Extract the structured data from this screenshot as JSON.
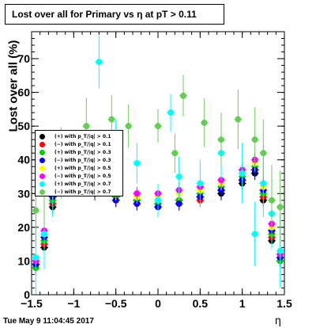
{
  "chart_data": {
    "type": "scatter",
    "title": "Lost over all for Primary vs   η at pT > 0.11",
    "xlabel": "η",
    "ylabel": "Lost over all (%)",
    "xlim": [
      -1.5,
      1.5
    ],
    "ylim": [
      0,
      78
    ],
    "x_ticks": [
      "−1.5",
      "−1",
      "−0.5",
      "0",
      "0.5",
      "1",
      "1.5"
    ],
    "y_ticks": [
      "0",
      "10",
      "20",
      "30",
      "40",
      "50",
      "60",
      "70"
    ],
    "grid": false,
    "legend_position": "left",
    "series": [
      {
        "name": "(+) with p_T/|q| > 0.1",
        "color": "#000000",
        "values": [
          [
            -1.45,
            8
          ],
          [
            -1.35,
            14
          ],
          [
            -1.25,
            26
          ],
          [
            -1.15,
            32
          ],
          [
            -1,
            32
          ],
          [
            -0.75,
            31
          ],
          [
            -0.5,
            29
          ],
          [
            -0.25,
            28
          ],
          [
            0,
            27
          ],
          [
            0.25,
            28
          ],
          [
            0.5,
            29
          ],
          [
            0.75,
            30
          ],
          [
            1,
            33
          ],
          [
            1.15,
            36
          ],
          [
            1.25,
            28
          ],
          [
            1.35,
            16
          ],
          [
            1.45,
            10
          ]
        ]
      },
      {
        "name": "(−) with p_T/|q| > 0.1",
        "color": "#ff0000",
        "values": [
          [
            -1.45,
            9
          ],
          [
            -1.35,
            15
          ],
          [
            -1.25,
            27
          ],
          [
            -1.15,
            33
          ],
          [
            -1,
            33
          ],
          [
            -0.75,
            30
          ],
          [
            -0.5,
            28
          ],
          [
            -0.25,
            27
          ],
          [
            0,
            26
          ],
          [
            0.25,
            27
          ],
          [
            0.5,
            28
          ],
          [
            0.75,
            31
          ],
          [
            1,
            34
          ],
          [
            1.15,
            37
          ],
          [
            1.25,
            29
          ],
          [
            1.35,
            17
          ],
          [
            1.45,
            11
          ]
        ]
      },
      {
        "name": "(+) with p_T/|q| > 0.3",
        "color": "#00cc00",
        "values": [
          [
            -1.45,
            8
          ],
          [
            -1.35,
            16
          ],
          [
            -1.25,
            28
          ],
          [
            -1.15,
            34
          ],
          [
            -1,
            34
          ],
          [
            -0.75,
            31
          ],
          [
            -0.5,
            29
          ],
          [
            -0.25,
            28
          ],
          [
            0,
            27
          ],
          [
            0.25,
            28
          ],
          [
            0.5,
            30
          ],
          [
            0.75,
            32
          ],
          [
            1,
            35
          ],
          [
            1.15,
            38
          ],
          [
            1.25,
            30
          ],
          [
            1.35,
            18
          ],
          [
            1.45,
            10
          ]
        ]
      },
      {
        "name": "(−) with p_T/|q| > 0.3",
        "color": "#0000ff",
        "values": [
          [
            -1.45,
            9
          ],
          [
            -1.35,
            17
          ],
          [
            -1.25,
            29
          ],
          [
            -1.15,
            35
          ],
          [
            -1,
            33
          ],
          [
            -0.75,
            30
          ],
          [
            -0.5,
            28
          ],
          [
            -0.25,
            27
          ],
          [
            0,
            26
          ],
          [
            0.25,
            27
          ],
          [
            0.5,
            29
          ],
          [
            0.75,
            31
          ],
          [
            1,
            34
          ],
          [
            1.15,
            37
          ],
          [
            1.25,
            31
          ],
          [
            1.35,
            19
          ],
          [
            1.45,
            11
          ]
        ]
      },
      {
        "name": "(+) with p_T/|q| > 0.5",
        "color": "#ffff00",
        "values": [
          [
            -1.45,
            10
          ],
          [
            -1.35,
            18
          ],
          [
            -1.25,
            30
          ],
          [
            -1.15,
            36
          ],
          [
            -1,
            35
          ],
          [
            -0.75,
            32
          ],
          [
            -0.5,
            30
          ],
          [
            -0.25,
            29
          ],
          [
            0,
            29
          ],
          [
            0.25,
            30
          ],
          [
            0.5,
            31
          ],
          [
            0.75,
            33
          ],
          [
            1,
            36
          ],
          [
            1.15,
            39
          ],
          [
            1.25,
            32
          ],
          [
            1.35,
            20
          ],
          [
            1.45,
            12
          ]
        ]
      },
      {
        "name": "(−) with p_T/|q| > 0.5",
        "color": "#ff00ff",
        "values": [
          [
            -1.45,
            10
          ],
          [
            -1.35,
            19
          ],
          [
            -1.25,
            31
          ],
          [
            -1.15,
            37
          ],
          [
            -1,
            36
          ],
          [
            -0.75,
            33
          ],
          [
            -0.5,
            31
          ],
          [
            -0.25,
            30
          ],
          [
            0,
            30
          ],
          [
            0.25,
            31
          ],
          [
            0.5,
            32
          ],
          [
            0.75,
            34
          ],
          [
            1,
            37
          ],
          [
            1.15,
            40
          ],
          [
            1.25,
            33
          ],
          [
            1.35,
            21
          ],
          [
            1.45,
            12
          ]
        ]
      },
      {
        "name": "(+) with p_T/|q| > 0.7",
        "color": "#00ffff",
        "values": [
          [
            -1.45,
            11
          ],
          [
            -1.35,
            18
          ],
          [
            -1.25,
            33
          ],
          [
            -1.15,
            38
          ],
          [
            -0.7,
            69
          ],
          [
            -0.5,
            45
          ],
          [
            -0.25,
            39
          ],
          [
            0,
            28
          ],
          [
            0.15,
            54
          ],
          [
            0.25,
            35
          ],
          [
            0.5,
            33
          ],
          [
            0.75,
            42
          ],
          [
            1,
            36
          ],
          [
            1.15,
            18
          ],
          [
            1.25,
            33
          ],
          [
            1.35,
            24
          ],
          [
            1.45,
            13
          ]
        ]
      },
      {
        "name": "(−) with p_T/|q| > 0.7",
        "color": "#66cc55",
        "values": [
          [
            -1.45,
            25
          ],
          [
            -1.35,
            30
          ],
          [
            -1.25,
            38
          ],
          [
            -1.15,
            40
          ],
          [
            -0.85,
            50
          ],
          [
            -0.55,
            52
          ],
          [
            -0.35,
            50
          ],
          [
            0,
            50
          ],
          [
            0.2,
            42
          ],
          [
            0.3,
            59
          ],
          [
            0.55,
            51
          ],
          [
            0.75,
            46
          ],
          [
            0.95,
            52
          ],
          [
            1.15,
            46
          ],
          [
            1.25,
            42
          ],
          [
            1.35,
            28
          ],
          [
            1.45,
            26
          ]
        ]
      }
    ]
  },
  "datestamp": "Tue May  9 11:04:45 2017"
}
